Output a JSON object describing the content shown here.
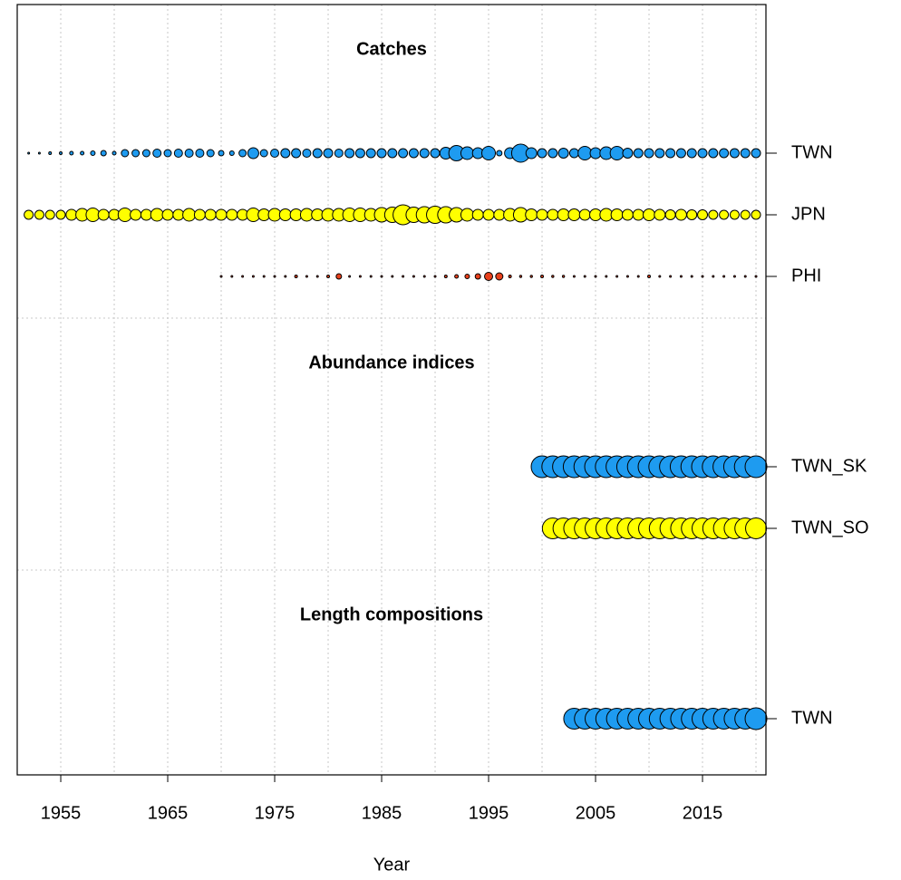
{
  "chart_data": {
    "type": "bubble",
    "x_label": "Year",
    "xlim": [
      1950.93,
      2020.93
    ],
    "xticks": [
      1955,
      1965,
      1975,
      1985,
      1995,
      2005,
      2015
    ],
    "grid_xticks": [
      1955,
      1960,
      1965,
      1970,
      1975,
      1980,
      1985,
      1990,
      1995,
      2000,
      2005,
      2010,
      2015,
      2020
    ],
    "grid": true,
    "sections": [
      {
        "title": "Catches",
        "series": [
          {
            "name": "TWN",
            "color": "#1e9bf0",
            "x": [
              1952,
              1953,
              1954,
              1955,
              1956,
              1957,
              1958,
              1959,
              1960,
              1961,
              1962,
              1963,
              1964,
              1965,
              1966,
              1967,
              1968,
              1969,
              1970,
              1971,
              1972,
              1973,
              1974,
              1975,
              1976,
              1977,
              1978,
              1979,
              1980,
              1981,
              1982,
              1983,
              1984,
              1985,
              1986,
              1987,
              1988,
              1989,
              1990,
              1991,
              1992,
              1993,
              1994,
              1995,
              1996,
              1997,
              1998,
              1999,
              2000,
              2001,
              2002,
              2003,
              2004,
              2005,
              2006,
              2007,
              2008,
              2009,
              2010,
              2011,
              2012,
              2013,
              2014,
              2015,
              2016,
              2017,
              2018,
              2019,
              2020
            ],
            "values": [
              1,
              1,
              1.5,
              1.5,
              2,
              2,
              2.5,
              3,
              2,
              4,
              4,
              4,
              4.5,
              4,
              4.5,
              4.5,
              4.5,
              4,
              3,
              2.5,
              4,
              6,
              4,
              4.5,
              5,
              5,
              4.5,
              5,
              5,
              4.5,
              5,
              5,
              5,
              5,
              5,
              5,
              5,
              5,
              5,
              6.5,
              8.5,
              7,
              6,
              7.5,
              3,
              6,
              10,
              6,
              5,
              5,
              5.5,
              5,
              7.5,
              6,
              7,
              7.5,
              5.5,
              5,
              5,
              5,
              5,
              5,
              5,
              5,
              5,
              5,
              5,
              5,
              5
            ]
          },
          {
            "name": "JPN",
            "color": "#ffff00",
            "x": [
              1952,
              1953,
              1954,
              1955,
              1956,
              1957,
              1958,
              1959,
              1960,
              1961,
              1962,
              1963,
              1964,
              1965,
              1966,
              1967,
              1968,
              1969,
              1970,
              1971,
              1972,
              1973,
              1974,
              1975,
              1976,
              1977,
              1978,
              1979,
              1980,
              1981,
              1982,
              1983,
              1984,
              1985,
              1986,
              1987,
              1988,
              1989,
              1990,
              1991,
              1992,
              1993,
              1994,
              1995,
              1996,
              1997,
              1998,
              1999,
              2000,
              2001,
              2002,
              2003,
              2004,
              2005,
              2006,
              2007,
              2008,
              2009,
              2010,
              2011,
              2012,
              2013,
              2014,
              2015,
              2016,
              2017,
              2018,
              2019,
              2020
            ],
            "values": [
              5,
              5,
              5,
              5,
              6,
              7,
              7.5,
              6,
              6,
              7.5,
              6,
              6,
              7,
              6,
              6,
              7,
              6,
              6,
              6,
              6,
              6,
              7.5,
              6.5,
              7,
              6.5,
              6.5,
              7,
              6.5,
              7,
              7,
              7.5,
              7.5,
              7,
              8,
              8.5,
              11,
              8.5,
              9,
              9.5,
              9,
              8,
              7,
              6,
              6,
              6,
              7,
              8,
              6.5,
              6,
              6,
              6.5,
              6.5,
              6,
              6.5,
              7,
              6.5,
              6,
              6,
              6.5,
              6,
              5.5,
              6,
              5.5,
              5.5,
              5,
              5,
              5,
              5,
              5
            ]
          },
          {
            "name": "PHI",
            "color": "#e8401c",
            "x": [
              1970,
              1971,
              1972,
              1973,
              1974,
              1975,
              1976,
              1977,
              1978,
              1979,
              1980,
              1981,
              1982,
              1983,
              1984,
              1985,
              1986,
              1987,
              1988,
              1989,
              1990,
              1991,
              1992,
              1993,
              1994,
              1995,
              1996,
              1997,
              1998,
              1999,
              2000,
              2001,
              2002,
              2003,
              2004,
              2005,
              2006,
              2007,
              2008,
              2009,
              2010,
              2011,
              2012,
              2013,
              2014,
              2015,
              2016,
              2017,
              2018,
              2019,
              2020
            ],
            "values": [
              1,
              1,
              1,
              1,
              1,
              1,
              1,
              1.5,
              1,
              1,
              1.5,
              3,
              1,
              1,
              1,
              1,
              1,
              1,
              1,
              1,
              1,
              1.5,
              2,
              2.5,
              3,
              4.5,
              4,
              1.5,
              1.2,
              1.2,
              1.5,
              1.2,
              1.2,
              1,
              1,
              1,
              1,
              1,
              1,
              1,
              1.5,
              1,
              1,
              1,
              1,
              1,
              1,
              1,
              1,
              1,
              1
            ]
          }
        ]
      },
      {
        "title": "Abundance indices",
        "series": [
          {
            "name": "TWN_SK",
            "color": "#1e9bf0",
            "x": [
              2000,
              2001,
              2002,
              2003,
              2004,
              2005,
              2006,
              2007,
              2008,
              2009,
              2010,
              2011,
              2012,
              2013,
              2014,
              2015,
              2016,
              2017,
              2018,
              2019,
              2020
            ],
            "values": [
              12,
              12,
              12,
              12,
              12,
              12,
              12,
              12,
              12,
              12,
              12,
              12,
              12,
              12,
              12,
              12,
              12,
              12,
              12,
              12,
              12
            ]
          },
          {
            "name": "TWN_SO",
            "color": "#ffff00",
            "x": [
              2001,
              2002,
              2003,
              2004,
              2005,
              2006,
              2007,
              2008,
              2009,
              2010,
              2011,
              2012,
              2013,
              2014,
              2015,
              2016,
              2017,
              2018,
              2019,
              2020
            ],
            "values": [
              11.5,
              11.5,
              11.5,
              11.5,
              11.5,
              11.5,
              11.5,
              11.5,
              11.5,
              11.5,
              11.5,
              11.5,
              11.5,
              11.5,
              11.5,
              11.5,
              11.5,
              11.5,
              11.5,
              11.5
            ]
          }
        ]
      },
      {
        "title": "Length compositions",
        "series": [
          {
            "name": "TWN",
            "color": "#1e9bf0",
            "x": [
              2003,
              2004,
              2005,
              2006,
              2007,
              2008,
              2009,
              2010,
              2011,
              2012,
              2013,
              2014,
              2015,
              2016,
              2017,
              2018,
              2019,
              2020
            ],
            "values": [
              11.5,
              11.5,
              11.5,
              11.5,
              11.5,
              11.5,
              11.5,
              11.5,
              11.5,
              11.5,
              11.5,
              11.5,
              11.5,
              11.5,
              11.5,
              11.5,
              11.5,
              12
            ]
          }
        ]
      }
    ]
  }
}
